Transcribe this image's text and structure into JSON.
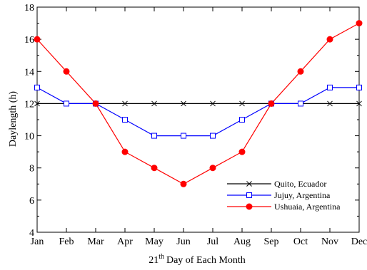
{
  "chart_data": {
    "type": "line",
    "xlabel": "Day of Each Month",
    "xlabel_prefix": "21",
    "xlabel_superscript": "th",
    "ylabel": "Daylength (h)",
    "categories": [
      "Jan",
      "Feb",
      "Mar",
      "Apr",
      "May",
      "Jun",
      "Jul",
      "Aug",
      "Sep",
      "Oct",
      "Nov",
      "Dec"
    ],
    "ylim": [
      4,
      18
    ],
    "yticks": [
      4,
      6,
      8,
      10,
      12,
      14,
      16,
      18
    ],
    "grid": false,
    "legend_position": "bottom-right",
    "series": [
      {
        "name": "Quito, Ecuador",
        "color": "#000000",
        "marker": "x",
        "values": [
          12,
          12,
          12,
          12,
          12,
          12,
          12,
          12,
          12,
          12,
          12,
          12
        ]
      },
      {
        "name": "Jujuy, Argentina",
        "color": "#0000ff",
        "marker": "open-square",
        "values": [
          13,
          12,
          12,
          11,
          10,
          10,
          10,
          11,
          12,
          12,
          13,
          13
        ]
      },
      {
        "name": "Ushuaia, Argentina",
        "color": "#ff0000",
        "marker": "filled-circle",
        "values": [
          16,
          14,
          12,
          9,
          8,
          7,
          8,
          9,
          12,
          14,
          16,
          17
        ]
      }
    ]
  }
}
